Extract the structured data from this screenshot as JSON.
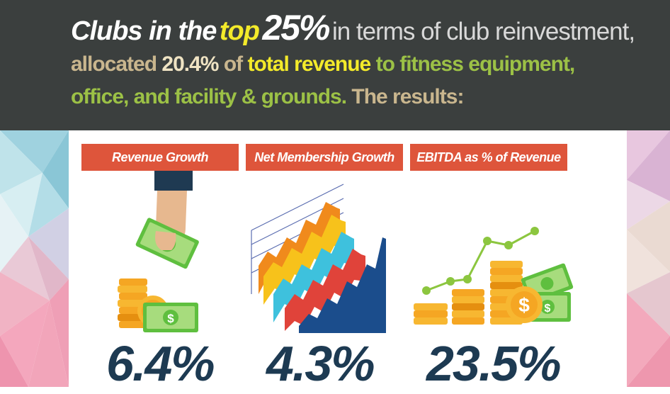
{
  "headline": {
    "line1_a": "Clubs in the",
    "line1_top": "top",
    "line1_pct": "25%",
    "line1_rest": "in terms of club reinvestment,",
    "line2_a": "allocated",
    "line2_value": "20.4%",
    "line2_of": "of",
    "line2_total": "total revenue",
    "line2_rest": "to fitness equipment,",
    "line3_a": "office, and facility & grounds.",
    "line3_b": "The results:"
  },
  "metrics": [
    {
      "label": "Revenue Growth",
      "value": "6.4%"
    },
    {
      "label": "Net Membership Growth",
      "value": "4.3%"
    },
    {
      "label": "EBITDA as % of Revenue",
      "value": "23.5%"
    }
  ],
  "colors": {
    "header_bg": "#3b3f3e",
    "label_bg": "#de553b",
    "value_text": "#1d3a52",
    "highlight_yellow": "#f3ea2a",
    "highlight_green": "#9cc146"
  }
}
